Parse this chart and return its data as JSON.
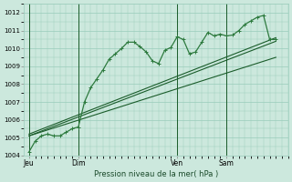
{
  "background_color": "#cce8dd",
  "grid_color": "#99ccbb",
  "line_color": "#1a5c2a",
  "line_color_light": "#2d7a3e",
  "title": "Pression niveau de la mer( hPa )",
  "ylim": [
    1004.0,
    1012.5
  ],
  "yticks": [
    1004,
    1005,
    1006,
    1007,
    1008,
    1009,
    1010,
    1011,
    1012
  ],
  "day_labels": [
    "Jeu",
    "Dim",
    "Ven",
    "Sam"
  ],
  "day_positions": [
    0.0,
    0.2,
    0.6,
    0.8
  ],
  "series1_x": [
    0.0,
    0.025,
    0.05,
    0.075,
    0.1,
    0.125,
    0.15,
    0.175,
    0.2,
    0.225,
    0.25,
    0.275,
    0.3,
    0.325,
    0.35,
    0.375,
    0.4,
    0.425,
    0.45,
    0.475,
    0.5,
    0.525,
    0.55,
    0.575,
    0.6,
    0.625,
    0.65,
    0.675,
    0.7,
    0.725,
    0.75,
    0.775,
    0.8,
    0.825,
    0.85,
    0.875,
    0.9,
    0.925,
    0.95,
    0.975,
    1.0
  ],
  "series1_y": [
    1004.2,
    1004.8,
    1005.1,
    1005.2,
    1005.1,
    1005.1,
    1005.3,
    1005.5,
    1005.6,
    1007.0,
    1007.8,
    1008.3,
    1008.8,
    1009.4,
    1009.7,
    1010.0,
    1010.35,
    1010.35,
    1010.1,
    1009.8,
    1009.3,
    1009.15,
    1009.9,
    1010.05,
    1010.65,
    1010.5,
    1009.7,
    1009.8,
    1010.35,
    1010.9,
    1010.7,
    1010.8,
    1010.7,
    1010.75,
    1011.0,
    1011.35,
    1011.55,
    1011.75,
    1011.85,
    1010.5,
    1010.5
  ],
  "trend1": {
    "x": [
      0.0,
      1.0
    ],
    "y": [
      1005.1,
      1010.4
    ]
  },
  "trend2": {
    "x": [
      0.0,
      1.0
    ],
    "y": [
      1005.1,
      1009.5
    ]
  },
  "trend3": {
    "x": [
      0.0,
      1.0
    ],
    "y": [
      1005.2,
      1010.6
    ]
  }
}
